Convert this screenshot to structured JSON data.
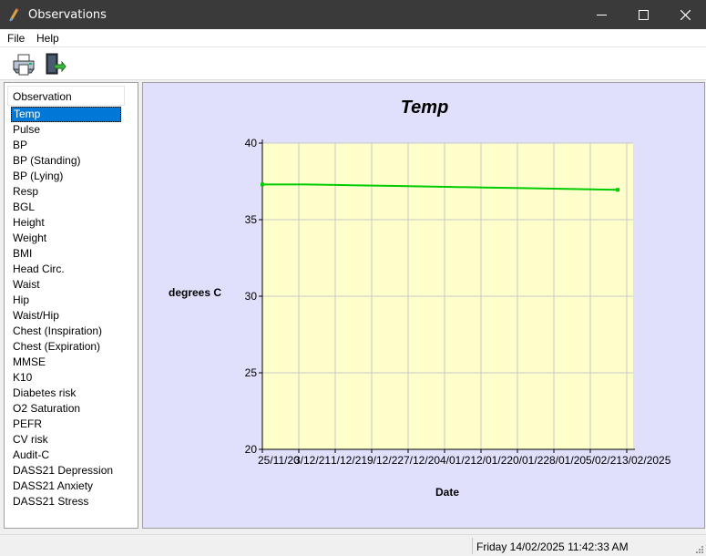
{
  "window": {
    "title": "Observations"
  },
  "menu": {
    "file": "File",
    "help": "Help"
  },
  "toolbar": {
    "print_icon": "printer-icon",
    "exit_icon": "exit-door-icon"
  },
  "list": {
    "header": "Observation",
    "selected_index": 0,
    "items": [
      "Temp",
      "Pulse",
      "BP",
      "BP (Standing)",
      "BP (Lying)",
      "Resp",
      "BGL",
      "Height",
      "Weight",
      "BMI",
      "Head Circ.",
      "Waist",
      "Hip",
      "Waist/Hip",
      "Chest (Inspiration)",
      "Chest (Expiration)",
      "MMSE",
      "K10",
      "Diabetes risk",
      "O2 Saturation",
      "PEFR",
      "CV risk",
      "Audit-C",
      "DASS21 Depression",
      "DASS21 Anxiety",
      "DASS21 Stress"
    ]
  },
  "status": {
    "datetime": "Friday 14/02/2025 11:42:33 AM"
  },
  "colors": {
    "plot_bg": "#ffffcc",
    "panel_bg": "#e0e0fc",
    "series": "#00cc00",
    "selection": "#0078d7"
  },
  "chart_data": {
    "type": "line",
    "title": "Temp",
    "xlabel": "Date",
    "ylabel": "degrees C",
    "ylim": [
      20,
      40
    ],
    "yticks": [
      20,
      25,
      30,
      35,
      40
    ],
    "xtick_labels": [
      "25/11/20",
      "3/12/21",
      "1/12/21",
      "9/12/22",
      "7/12/20",
      "4/01/21",
      "2/01/22",
      "0/01/22",
      "8/01/20",
      "5/02/21",
      "3/02/2025"
    ],
    "grid": true,
    "legend": "none",
    "series": [
      {
        "values": [
          37.3,
          37.3,
          37.25,
          37.2,
          37.15,
          37.1,
          37.05,
          37.0,
          36.95
        ]
      }
    ]
  }
}
